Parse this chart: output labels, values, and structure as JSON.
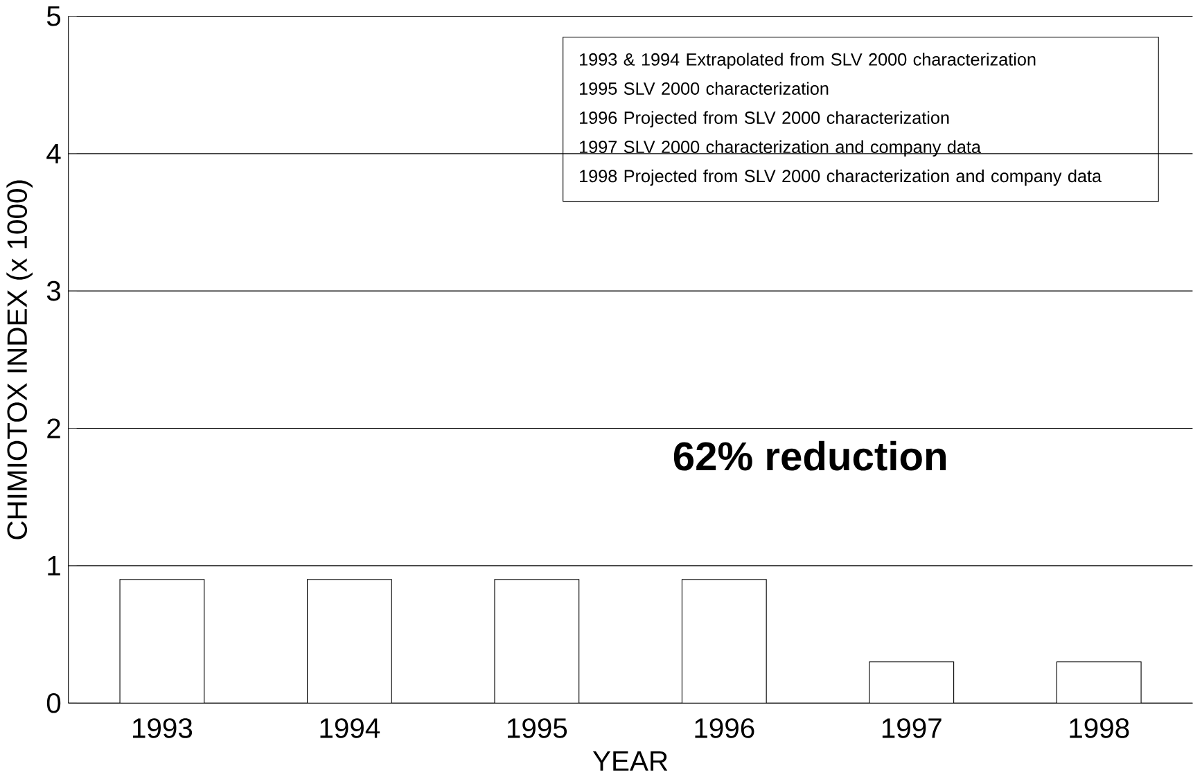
{
  "chart_data": {
    "type": "bar",
    "xlabel": "YEAR",
    "ylabel": "CHIMIOTOX INDEX (x 1000)",
    "categories": [
      "1993",
      "1994",
      "1995",
      "1996",
      "1997",
      "1998"
    ],
    "values": [
      0.9,
      0.9,
      0.9,
      0.9,
      0.3,
      0.3
    ],
    "color": "#ffffff",
    "ylim": [
      0,
      5
    ],
    "yticks": [
      0,
      1,
      2,
      3,
      4,
      5
    ],
    "grid": "y",
    "annotations": [
      "1993 & 1994  Extrapolated from SLV 2000 characterization",
      "1995  SLV 2000 characterization",
      "1996  Projected from SLV 2000 characterization",
      "1997  SLV 2000 characterization and company data",
      "1998  Projected from SLV 2000 characterization and company data",
      "62% reduction"
    ]
  }
}
